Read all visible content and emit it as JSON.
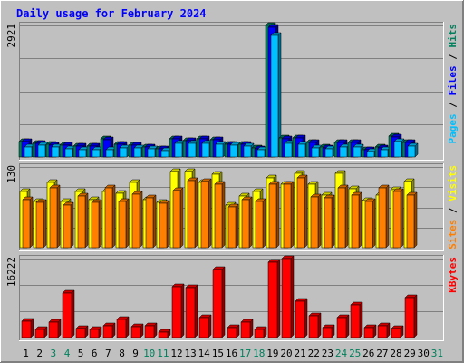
{
  "chart_data": {
    "type": "bar",
    "title": "Daily usage for February 2024",
    "days": [
      "1",
      "2",
      "3",
      "4",
      "5",
      "6",
      "7",
      "8",
      "9",
      "10",
      "11",
      "12",
      "13",
      "14",
      "15",
      "16",
      "17",
      "18",
      "19",
      "20",
      "21",
      "22",
      "23",
      "24",
      "25",
      "26",
      "27",
      "28",
      "29",
      "30",
      "31"
    ],
    "weekend_days": [
      3,
      4,
      10,
      11,
      17,
      18,
      24,
      25,
      31
    ],
    "colors": {
      "background": "#C0C0C0",
      "title": "#0000FF",
      "hits": "#00805C",
      "files": "#0000FF",
      "pages": "#00C0FF",
      "visits": "#FFFF00",
      "sites": "#FF8000",
      "kbytes": "#FF0000",
      "weekday_label": "#000000",
      "weekend_label": "#00805C"
    },
    "panels": [
      {
        "key": "pages_files_hits",
        "ymax": 2921,
        "ymax_label": "2921",
        "side_labels": [
          {
            "text": "Pages",
            "color": "#00C0FF"
          },
          {
            "text": " / ",
            "color": "#000000"
          },
          {
            "text": "Files",
            "color": "#0000FF"
          },
          {
            "text": " / ",
            "color": "#000000"
          },
          {
            "text": "Hits",
            "color": "#00805C"
          }
        ],
        "series": [
          {
            "name": "Hits",
            "color": "#00805C",
            "values": [
              350,
              310,
              280,
              270,
              250,
              250,
              400,
              290,
              270,
              220,
              190,
              400,
              370,
              410,
              380,
              290,
              290,
              200,
              2921,
              420,
              430,
              330,
              220,
              320,
              320,
              170,
              220,
              460,
              330,
              0,
              0
            ]
          },
          {
            "name": "Files",
            "color": "#0000FF",
            "values": [
              340,
              310,
              270,
              260,
              240,
              240,
              390,
              290,
              260,
              220,
              190,
              400,
              360,
              400,
              380,
              280,
              280,
              190,
              2880,
              410,
              420,
              320,
              210,
              320,
              320,
              160,
              210,
              450,
              320,
              0,
              0
            ]
          },
          {
            "name": "Pages",
            "color": "#00C0FF",
            "values": [
              230,
              270,
              220,
              190,
              160,
              160,
              160,
              210,
              200,
              180,
              150,
              300,
              300,
              300,
              280,
              260,
              250,
              170,
              2700,
              300,
              280,
              200,
              180,
              220,
              220,
              120,
              160,
              350,
              240,
              0,
              0
            ]
          }
        ]
      },
      {
        "key": "visits_sites",
        "ymax": 130,
        "ymax_label": "130",
        "side_labels": [
          {
            "text": "Sites",
            "color": "#FF8000"
          },
          {
            "text": " / ",
            "color": "#000000"
          },
          {
            "text": "Visits",
            "color": "#FFFF00"
          }
        ],
        "series": [
          {
            "name": "Visits",
            "color": "#FFFF00",
            "values": [
              90,
              75,
              105,
              75,
              90,
              78,
              90,
              88,
              105,
              78,
              73,
              122,
              122,
              105,
              118,
              68,
              83,
              90,
              112,
              102,
              120,
              102,
              84,
              120,
              95,
              76,
              84,
              93,
              107,
              0,
              0
            ]
          },
          {
            "name": "Sites",
            "color": "#FF8000",
            "values": [
              77,
              73,
              97,
              68,
              83,
              73,
              97,
              75,
              86,
              80,
              71,
              92,
              108,
              106,
              102,
              66,
              78,
              75,
              102,
              102,
              112,
              82,
              81,
              97,
              84,
              74,
              96,
              90,
              85,
              0,
              0
            ]
          }
        ]
      },
      {
        "key": "kbytes",
        "ymax": 16222,
        "ymax_label": "16222",
        "side_labels": [
          {
            "text": "KBytes",
            "color": "#FF0000"
          }
        ],
        "series": [
          {
            "name": "KBytes",
            "color": "#FF0000",
            "values": [
              3400,
              1600,
              3200,
              9200,
              1800,
              1600,
              2500,
              3800,
              2200,
              2500,
              1100,
              10500,
              10200,
              4100,
              14000,
              2000,
              3200,
              1700,
              15500,
              16222,
              7500,
              4500,
              2000,
              4100,
              6800,
              2000,
              2500,
              1800,
              8200,
              0,
              0
            ]
          }
        ]
      }
    ]
  }
}
